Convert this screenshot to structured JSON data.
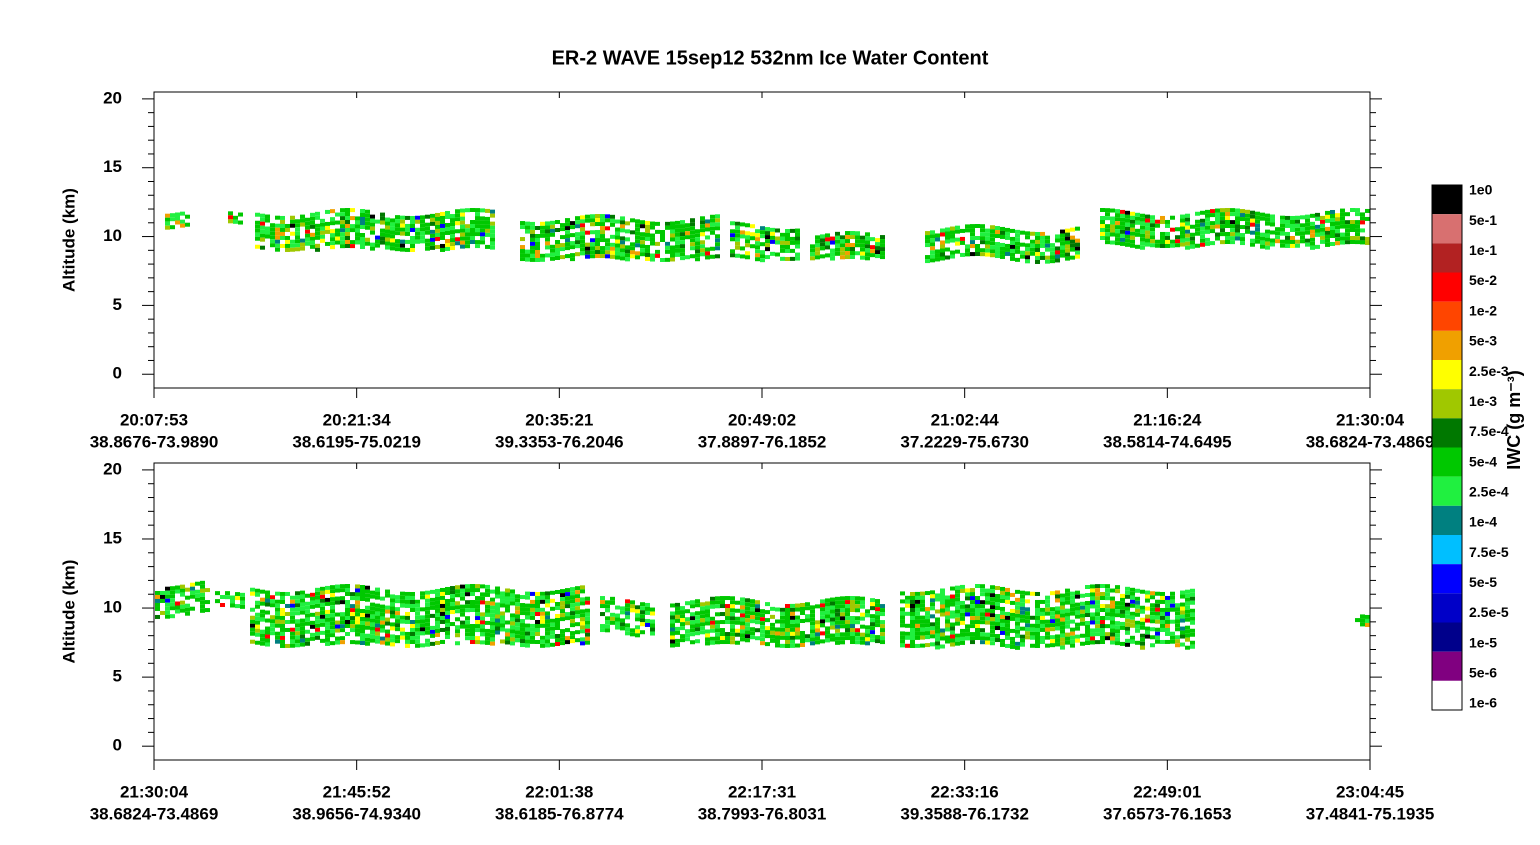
{
  "chart_data": [
    {
      "type": "curtain",
      "title": "ER-2  WAVE  15sep12  532nm Ice Water Content",
      "ylabel": "Altitude (km)",
      "categories": [
        "20:07:53",
        "20:21:34",
        "20:35:21",
        "20:49:02",
        "21:02:44",
        "21:16:24",
        "21:30:04"
      ],
      "sublabels": [
        "38.8676-73.9890",
        "38.6195-75.0219",
        "39.3353-76.2046",
        "37.8897-76.1852",
        "37.2229-75.6730",
        "38.5814-74.6495",
        "38.6824-73.4869"
      ],
      "ylim": [
        -1,
        20.5
      ],
      "yticks": [
        0,
        5,
        10,
        15,
        20
      ],
      "yminorticks": [
        1,
        2,
        3,
        4,
        6,
        7,
        8,
        9,
        11,
        12,
        13,
        14,
        16,
        17,
        18,
        19
      ],
      "colorbar": {
        "label": "IWC (g m⁻³)",
        "ticks": [
          {
            "value": 1,
            "label": "1e0"
          },
          {
            "value": 0.5,
            "label": "5e-1"
          },
          {
            "value": 0.1,
            "label": "1e-1"
          },
          {
            "value": 0.05,
            "label": "5e-2"
          },
          {
            "value": 0.01,
            "label": "1e-2"
          },
          {
            "value": 0.005,
            "label": "5e-3"
          },
          {
            "value": 0.0025,
            "label": "2.5e-3"
          },
          {
            "value": 0.001,
            "label": "1e-3"
          },
          {
            "value": 0.00075,
            "label": "7.5e-4"
          },
          {
            "value": 0.0005,
            "label": "5e-4"
          },
          {
            "value": 0.00025,
            "label": "2.5e-4"
          },
          {
            "value": 0.0001,
            "label": "1e-4"
          },
          {
            "value": 7.5e-05,
            "label": "7.5e-5"
          },
          {
            "value": 5e-05,
            "label": "5e-5"
          },
          {
            "value": 2.5e-05,
            "label": "2.5e-5"
          },
          {
            "value": 1e-05,
            "label": "1e-5"
          },
          {
            "value": 5e-06,
            "label": "5e-6"
          },
          {
            "value": 1e-06,
            "label": "1e-6"
          }
        ],
        "colors": [
          "#000000",
          "#d87070",
          "#b22222",
          "#ff0000",
          "#ff4500",
          "#f0a000",
          "#ffff00",
          "#a0c800",
          "#007800",
          "#00c800",
          "#20f040",
          "#008080",
          "#00bfff",
          "#0000ff",
          "#0000c8",
          "#00008b",
          "#800080",
          "#ffffff"
        ]
      }
    },
    {
      "type": "curtain",
      "ylabel": "Altitude (km)",
      "categories": [
        "21:30:04",
        "21:45:52",
        "22:01:38",
        "22:17:31",
        "22:33:16",
        "22:49:01",
        "23:04:45"
      ],
      "sublabels": [
        "38.6824-73.4869",
        "38.9656-74.9340",
        "38.6185-76.8774",
        "38.7993-76.8031",
        "39.3588-76.1732",
        "37.6573-76.1653",
        "37.4841-75.1935"
      ],
      "ylim": [
        -1,
        20.5
      ],
      "yticks": [
        0,
        5,
        10,
        15,
        20
      ],
      "yminorticks": [
        1,
        2,
        3,
        4,
        6,
        7,
        8,
        9,
        11,
        12,
        13,
        14,
        16,
        17,
        18,
        19
      ]
    }
  ]
}
